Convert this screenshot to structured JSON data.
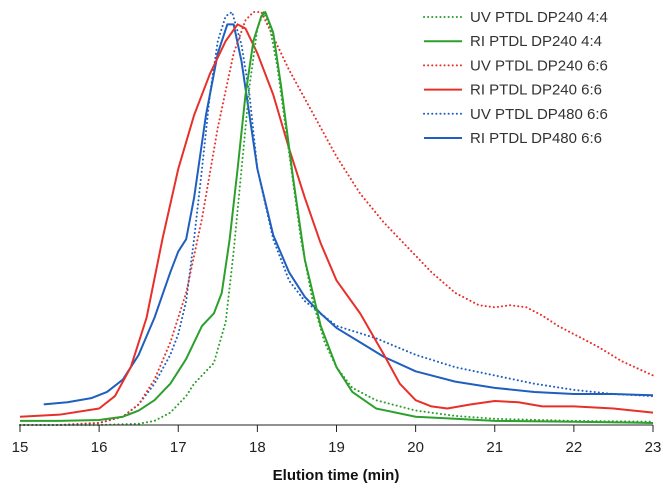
{
  "chart_data": {
    "type": "line",
    "title": "",
    "xlabel": "Elution time (min)",
    "ylabel": "",
    "xlim": [
      15,
      23
    ],
    "ylim": [
      0,
      1.0
    ],
    "x_ticks": [
      15,
      16,
      17,
      18,
      19,
      20,
      21,
      22,
      23
    ],
    "y_axis_shown": false,
    "grid": false,
    "legend_position": "top-right",
    "series": [
      {
        "name": "UV PTDL DP240 4:4",
        "color": "#2ca02c",
        "line_style": "dotted",
        "points": [
          [
            15.0,
            0.0
          ],
          [
            15.5,
            0.0
          ],
          [
            16.0,
            0.0
          ],
          [
            16.5,
            0.003
          ],
          [
            16.7,
            0.01
          ],
          [
            16.9,
            0.03
          ],
          [
            17.1,
            0.07
          ],
          [
            17.2,
            0.1
          ],
          [
            17.3,
            0.12
          ],
          [
            17.45,
            0.15
          ],
          [
            17.6,
            0.25
          ],
          [
            17.7,
            0.42
          ],
          [
            17.8,
            0.62
          ],
          [
            17.9,
            0.82
          ],
          [
            18.0,
            0.96
          ],
          [
            18.08,
            1.0
          ],
          [
            18.15,
            0.97
          ],
          [
            18.25,
            0.87
          ],
          [
            18.4,
            0.66
          ],
          [
            18.55,
            0.45
          ],
          [
            18.7,
            0.3
          ],
          [
            18.85,
            0.2
          ],
          [
            19.0,
            0.14
          ],
          [
            19.2,
            0.09
          ],
          [
            19.5,
            0.06
          ],
          [
            20.0,
            0.035
          ],
          [
            20.5,
            0.022
          ],
          [
            21.0,
            0.015
          ],
          [
            22.0,
            0.01
          ],
          [
            23.0,
            0.008
          ]
        ]
      },
      {
        "name": "RI PTDL DP240 4:4",
        "color": "#2ca02c",
        "line_style": "solid",
        "points": [
          [
            15.0,
            0.01
          ],
          [
            15.5,
            0.01
          ],
          [
            16.0,
            0.012
          ],
          [
            16.3,
            0.02
          ],
          [
            16.5,
            0.035
          ],
          [
            16.7,
            0.06
          ],
          [
            16.9,
            0.1
          ],
          [
            17.1,
            0.16
          ],
          [
            17.2,
            0.2
          ],
          [
            17.3,
            0.24
          ],
          [
            17.45,
            0.27
          ],
          [
            17.55,
            0.32
          ],
          [
            17.65,
            0.45
          ],
          [
            17.75,
            0.62
          ],
          [
            17.85,
            0.8
          ],
          [
            17.95,
            0.93
          ],
          [
            18.05,
            0.99
          ],
          [
            18.1,
            1.0
          ],
          [
            18.2,
            0.95
          ],
          [
            18.3,
            0.82
          ],
          [
            18.45,
            0.6
          ],
          [
            18.6,
            0.4
          ],
          [
            18.8,
            0.24
          ],
          [
            19.0,
            0.14
          ],
          [
            19.2,
            0.08
          ],
          [
            19.5,
            0.04
          ],
          [
            20.0,
            0.02
          ],
          [
            20.5,
            0.015
          ],
          [
            21.0,
            0.01
          ],
          [
            22.0,
            0.008
          ],
          [
            23.0,
            0.005
          ]
        ]
      },
      {
        "name": "UV PTDL DP240 6:6",
        "color": "#e8302a",
        "line_style": "dotted",
        "points": [
          [
            15.0,
            0.0
          ],
          [
            15.5,
            0.0
          ],
          [
            16.0,
            0.005
          ],
          [
            16.3,
            0.02
          ],
          [
            16.5,
            0.05
          ],
          [
            16.7,
            0.11
          ],
          [
            16.9,
            0.2
          ],
          [
            17.1,
            0.32
          ],
          [
            17.3,
            0.5
          ],
          [
            17.5,
            0.72
          ],
          [
            17.7,
            0.9
          ],
          [
            17.85,
            0.98
          ],
          [
            17.95,
            1.0
          ],
          [
            18.05,
            1.0
          ],
          [
            18.2,
            0.94
          ],
          [
            18.4,
            0.86
          ],
          [
            18.6,
            0.79
          ],
          [
            18.8,
            0.72
          ],
          [
            19.0,
            0.65
          ],
          [
            19.3,
            0.56
          ],
          [
            19.6,
            0.49
          ],
          [
            19.9,
            0.43
          ],
          [
            20.2,
            0.37
          ],
          [
            20.5,
            0.32
          ],
          [
            20.8,
            0.29
          ],
          [
            21.0,
            0.285
          ],
          [
            21.2,
            0.29
          ],
          [
            21.4,
            0.285
          ],
          [
            21.6,
            0.265
          ],
          [
            21.8,
            0.24
          ],
          [
            22.0,
            0.22
          ],
          [
            22.3,
            0.19
          ],
          [
            22.6,
            0.155
          ],
          [
            23.0,
            0.12
          ]
        ]
      },
      {
        "name": "RI PTDL DP240 6:6",
        "color": "#e8302a",
        "line_style": "solid",
        "points": [
          [
            15.0,
            0.02
          ],
          [
            15.5,
            0.025
          ],
          [
            16.0,
            0.04
          ],
          [
            16.2,
            0.07
          ],
          [
            16.4,
            0.14
          ],
          [
            16.6,
            0.26
          ],
          [
            16.8,
            0.45
          ],
          [
            17.0,
            0.62
          ],
          [
            17.2,
            0.75
          ],
          [
            17.4,
            0.85
          ],
          [
            17.6,
            0.93
          ],
          [
            17.75,
            0.97
          ],
          [
            17.85,
            0.96
          ],
          [
            18.0,
            0.9
          ],
          [
            18.2,
            0.8
          ],
          [
            18.4,
            0.67
          ],
          [
            18.6,
            0.55
          ],
          [
            18.8,
            0.44
          ],
          [
            19.0,
            0.35
          ],
          [
            19.3,
            0.27
          ],
          [
            19.6,
            0.17
          ],
          [
            19.8,
            0.1
          ],
          [
            20.0,
            0.06
          ],
          [
            20.2,
            0.045
          ],
          [
            20.4,
            0.04
          ],
          [
            20.7,
            0.05
          ],
          [
            21.0,
            0.058
          ],
          [
            21.3,
            0.055
          ],
          [
            21.6,
            0.045
          ],
          [
            22.0,
            0.045
          ],
          [
            22.5,
            0.04
          ],
          [
            23.0,
            0.03
          ]
        ]
      },
      {
        "name": "UV PTDL DP480 6:6",
        "color": "#1f5fbf",
        "line_style": "dotted",
        "points": [
          [
            15.0,
            0.0
          ],
          [
            15.5,
            0.0
          ],
          [
            16.0,
            0.005
          ],
          [
            16.3,
            0.02
          ],
          [
            16.5,
            0.05
          ],
          [
            16.7,
            0.1
          ],
          [
            16.9,
            0.17
          ],
          [
            17.0,
            0.22
          ],
          [
            17.1,
            0.3
          ],
          [
            17.2,
            0.45
          ],
          [
            17.3,
            0.62
          ],
          [
            17.4,
            0.8
          ],
          [
            17.5,
            0.93
          ],
          [
            17.6,
            0.99
          ],
          [
            17.68,
            1.0
          ],
          [
            17.8,
            0.92
          ],
          [
            17.9,
            0.8
          ],
          [
            18.0,
            0.62
          ],
          [
            18.2,
            0.45
          ],
          [
            18.4,
            0.35
          ],
          [
            18.6,
            0.3
          ],
          [
            18.8,
            0.27
          ],
          [
            19.0,
            0.24
          ],
          [
            19.5,
            0.21
          ],
          [
            20.0,
            0.17
          ],
          [
            20.5,
            0.14
          ],
          [
            21.0,
            0.12
          ],
          [
            21.5,
            0.1
          ],
          [
            22.0,
            0.085
          ],
          [
            22.5,
            0.075
          ],
          [
            23.0,
            0.07
          ]
        ]
      },
      {
        "name": "RI PTDL DP480 6:6",
        "color": "#1f5fbf",
        "line_style": "solid",
        "points": [
          [
            15.3,
            0.05
          ],
          [
            15.6,
            0.055
          ],
          [
            15.9,
            0.065
          ],
          [
            16.1,
            0.08
          ],
          [
            16.3,
            0.11
          ],
          [
            16.5,
            0.17
          ],
          [
            16.7,
            0.26
          ],
          [
            16.9,
            0.37
          ],
          [
            17.0,
            0.42
          ],
          [
            17.1,
            0.45
          ],
          [
            17.2,
            0.55
          ],
          [
            17.35,
            0.75
          ],
          [
            17.5,
            0.9
          ],
          [
            17.62,
            0.97
          ],
          [
            17.7,
            0.97
          ],
          [
            17.8,
            0.88
          ],
          [
            17.9,
            0.75
          ],
          [
            18.0,
            0.62
          ],
          [
            18.2,
            0.46
          ],
          [
            18.4,
            0.37
          ],
          [
            18.6,
            0.31
          ],
          [
            18.8,
            0.27
          ],
          [
            19.0,
            0.235
          ],
          [
            19.3,
            0.2
          ],
          [
            19.6,
            0.165
          ],
          [
            20.0,
            0.13
          ],
          [
            20.5,
            0.105
          ],
          [
            21.0,
            0.09
          ],
          [
            21.5,
            0.08
          ],
          [
            22.0,
            0.075
          ],
          [
            22.5,
            0.075
          ],
          [
            23.0,
            0.072
          ]
        ]
      }
    ]
  }
}
